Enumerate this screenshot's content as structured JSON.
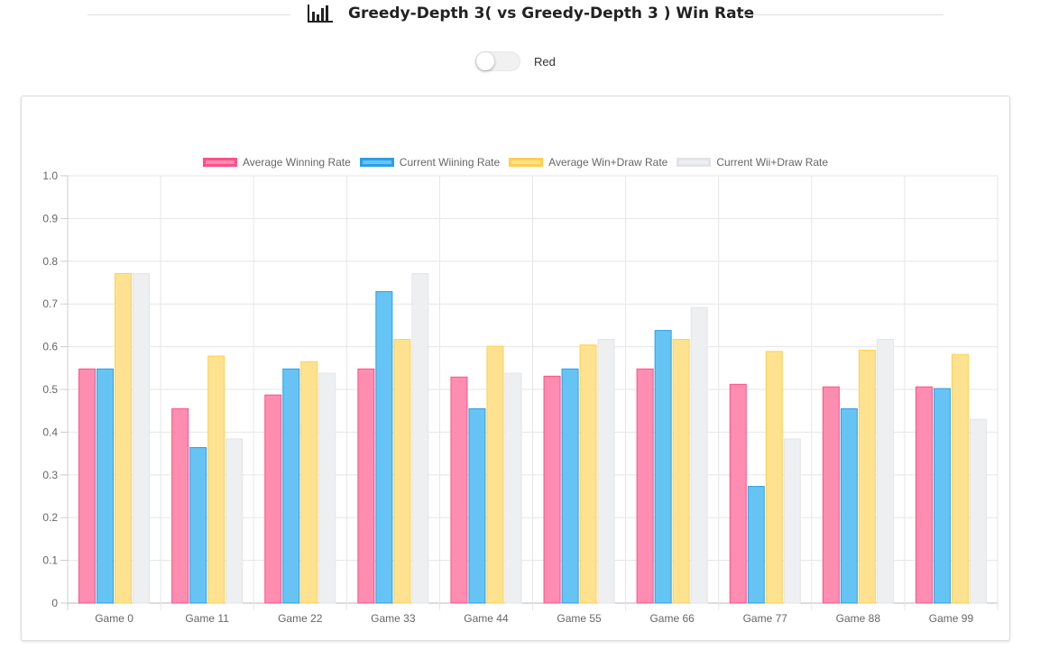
{
  "header": {
    "title": "Greedy-Depth 3( vs Greedy-Depth 3 ) Win Rate",
    "icon": "bar-chart-icon"
  },
  "toggle": {
    "label": "Red",
    "on": false
  },
  "chart_data": {
    "type": "bar",
    "categories": [
      "Game 0",
      "Game 11",
      "Game 22",
      "Game 33",
      "Game 44",
      "Game 55",
      "Game 66",
      "Game 77",
      "Game 88",
      "Game 99"
    ],
    "series": [
      {
        "name": "Average Winning Rate",
        "fill": "#ff8db1",
        "border": "#ff4f86",
        "values": [
          0.548,
          0.455,
          0.487,
          0.548,
          0.529,
          0.531,
          0.548,
          0.512,
          0.506,
          0.506
        ]
      },
      {
        "name": "Current Wiining Rate",
        "fill": "#66c4f5",
        "border": "#2b9fe3",
        "values": [
          0.548,
          0.364,
          0.548,
          0.729,
          0.455,
          0.548,
          0.638,
          0.273,
          0.455,
          0.502
        ]
      },
      {
        "name": "Average Win+Draw Rate",
        "fill": "#ffe28f",
        "border": "#ffcf4d",
        "values": [
          0.771,
          0.578,
          0.565,
          0.617,
          0.601,
          0.604,
          0.617,
          0.589,
          0.592,
          0.582
        ]
      },
      {
        "name": "Current Wii+Draw Rate",
        "fill": "#eeeff1",
        "border": "#e3e4e7",
        "values": [
          0.771,
          0.384,
          0.538,
          0.771,
          0.538,
          0.617,
          0.692,
          0.384,
          0.617,
          0.43
        ]
      }
    ],
    "yticks": [
      "0",
      "0.1",
      "0.2",
      "0.3",
      "0.4",
      "0.5",
      "0.6",
      "0.7",
      "0.8",
      "0.9",
      "1.0"
    ],
    "ylim": [
      0,
      1.0
    ],
    "grid": true,
    "legend_position": "top"
  }
}
